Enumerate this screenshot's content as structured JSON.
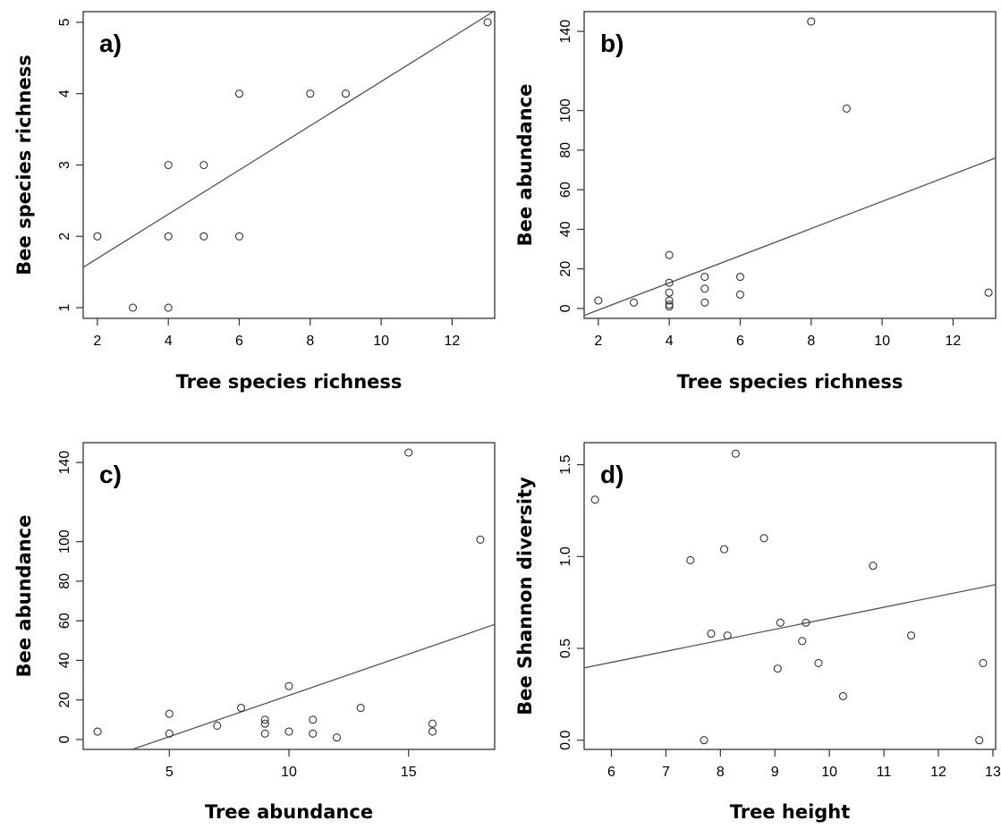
{
  "chart_data": [
    {
      "type": "scatter",
      "panel_label": "a)",
      "xlabel": "Tree species richness",
      "ylabel": "Bee species richness",
      "xlim": [
        1.6,
        13.2
      ],
      "ylim": [
        0.85,
        5.15
      ],
      "xticks": [
        2,
        4,
        6,
        8,
        10,
        12
      ],
      "yticks": [
        1,
        2,
        3,
        4,
        5
      ],
      "points": [
        {
          "x": 2,
          "y": 2
        },
        {
          "x": 3,
          "y": 1
        },
        {
          "x": 4,
          "y": 3
        },
        {
          "x": 4,
          "y": 2
        },
        {
          "x": 4,
          "y": 1
        },
        {
          "x": 5,
          "y": 3
        },
        {
          "x": 5,
          "y": 2
        },
        {
          "x": 6,
          "y": 4
        },
        {
          "x": 6,
          "y": 2
        },
        {
          "x": 8,
          "y": 4
        },
        {
          "x": 9,
          "y": 4
        },
        {
          "x": 13,
          "y": 5
        }
      ],
      "fit_line": {
        "intercept": 1.07,
        "slope": 0.31
      },
      "grid": false
    },
    {
      "type": "scatter",
      "panel_label": "b)",
      "xlabel": "Tree species richness",
      "ylabel": "Bee abundance",
      "xlim": [
        1.6,
        13.2
      ],
      "ylim": [
        -5,
        150
      ],
      "xticks": [
        2,
        4,
        6,
        8,
        10,
        12
      ],
      "yticks": [
        0,
        20,
        40,
        60,
        80,
        100,
        140
      ],
      "points": [
        {
          "x": 2,
          "y": 4
        },
        {
          "x": 3,
          "y": 3
        },
        {
          "x": 4,
          "y": 27
        },
        {
          "x": 4,
          "y": 13
        },
        {
          "x": 4,
          "y": 8
        },
        {
          "x": 4,
          "y": 4
        },
        {
          "x": 4,
          "y": 2
        },
        {
          "x": 4,
          "y": 1
        },
        {
          "x": 5,
          "y": 16
        },
        {
          "x": 5,
          "y": 10
        },
        {
          "x": 5,
          "y": 3
        },
        {
          "x": 6,
          "y": 16
        },
        {
          "x": 6,
          "y": 7
        },
        {
          "x": 8,
          "y": 145
        },
        {
          "x": 9,
          "y": 101
        },
        {
          "x": 13,
          "y": 8
        }
      ],
      "fit_line": {
        "intercept": -14.5,
        "slope": 6.86
      },
      "grid": false
    },
    {
      "type": "scatter",
      "panel_label": "c)",
      "xlabel": "Tree abundance",
      "ylabel": "Bee abundance",
      "xlim": [
        1.4,
        18.6
      ],
      "ylim": [
        -5,
        150
      ],
      "xticks": [
        5,
        10,
        15
      ],
      "yticks": [
        0,
        20,
        40,
        60,
        80,
        100,
        140
      ],
      "points": [
        {
          "x": 2,
          "y": 4
        },
        {
          "x": 5,
          "y": 13
        },
        {
          "x": 5,
          "y": 3
        },
        {
          "x": 7,
          "y": 7
        },
        {
          "x": 8,
          "y": 16
        },
        {
          "x": 9,
          "y": 10
        },
        {
          "x": 9,
          "y": 8
        },
        {
          "x": 9,
          "y": 3
        },
        {
          "x": 10,
          "y": 27
        },
        {
          "x": 10,
          "y": 4
        },
        {
          "x": 11,
          "y": 10
        },
        {
          "x": 11,
          "y": 3
        },
        {
          "x": 12,
          "y": 1
        },
        {
          "x": 13,
          "y": 16
        },
        {
          "x": 15,
          "y": 145
        },
        {
          "x": 16,
          "y": 8
        },
        {
          "x": 16,
          "y": 4
        },
        {
          "x": 18,
          "y": 101
        }
      ],
      "fit_line": {
        "intercept": -19.4,
        "slope": 4.17
      },
      "grid": false
    },
    {
      "type": "scatter",
      "panel_label": "d)",
      "xlabel": "Tree height",
      "ylabel": "Bee Shannon diversity",
      "xlim": [
        5.5,
        13.05
      ],
      "ylim": [
        -0.05,
        1.62
      ],
      "xticks": [
        6,
        7,
        8,
        9,
        10,
        11,
        12,
        13
      ],
      "yticks": [
        0.0,
        0.5,
        1.0,
        1.5
      ],
      "ytick_labels": [
        "0.0",
        "0.5",
        "1.0",
        "1.5"
      ],
      "points": [
        {
          "x": 5.7,
          "y": 1.31
        },
        {
          "x": 7.45,
          "y": 0.98
        },
        {
          "x": 7.7,
          "y": 0.0
        },
        {
          "x": 7.83,
          "y": 0.58
        },
        {
          "x": 8.07,
          "y": 1.04
        },
        {
          "x": 8.13,
          "y": 0.57
        },
        {
          "x": 8.28,
          "y": 1.56
        },
        {
          "x": 8.8,
          "y": 1.1
        },
        {
          "x": 9.05,
          "y": 0.39
        },
        {
          "x": 9.1,
          "y": 0.64
        },
        {
          "x": 9.5,
          "y": 0.54
        },
        {
          "x": 9.57,
          "y": 0.64
        },
        {
          "x": 9.8,
          "y": 0.42
        },
        {
          "x": 10.25,
          "y": 0.24
        },
        {
          "x": 10.8,
          "y": 0.95
        },
        {
          "x": 11.5,
          "y": 0.57
        },
        {
          "x": 12.75,
          "y": 0.0
        },
        {
          "x": 12.82,
          "y": 0.42
        }
      ],
      "fit_line": {
        "intercept": 0.064,
        "slope": 0.06
      },
      "grid": false
    }
  ]
}
